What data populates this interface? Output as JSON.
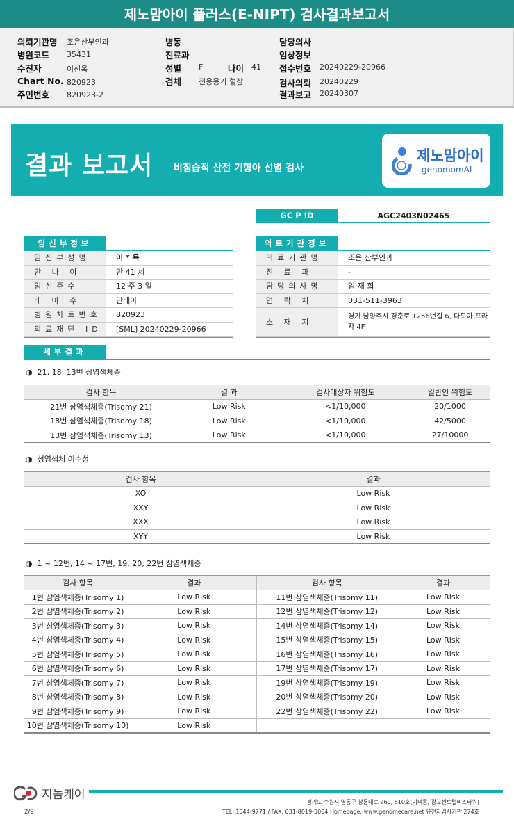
{
  "title": "제노맘아이 플러스(E-NIPT) 검사결과보고서",
  "info": {
    "req_org_label": "의뢰기관명",
    "req_org": "조은산부인과",
    "hosp_code_label": "병원코드",
    "hosp_code": "35431",
    "patient_label": "수진자",
    "patient": "이선옥",
    "chart_label": "Chart No.",
    "chart": "820923",
    "rrn_label": "주민번호",
    "rrn": "820923-2",
    "ward_label": "병동",
    "dept_label": "진료과",
    "sex_label": "성별",
    "sex": "F",
    "age_label": "나이",
    "age": "41",
    "specimen_label": "검체",
    "specimen": "전용용기 혈장",
    "doctor_label": "담당의사",
    "clinical_label": "임상정보",
    "receipt_label": "접수번호",
    "receipt": "20240229-20966",
    "request_label": "검사의뢰",
    "request": "20240229",
    "report_label": "결과보고",
    "report": "20240307"
  },
  "banner": {
    "title": "결과 보고서",
    "subtitle": "비침습적 산전 기형아 선별 검사",
    "logo_kr": "제노맘아이",
    "logo_en": "genomomAI"
  },
  "gcpid": {
    "label": "GC P ID",
    "value": "AGC2403N02465"
  },
  "mother": {
    "heading": "임신부정보",
    "rows": [
      {
        "k": "임신부성명",
        "v": "이 * 옥"
      },
      {
        "k": "만 나 이",
        "v": "만 41 세"
      },
      {
        "k": "임신주수",
        "v": "12 주 3 일"
      },
      {
        "k": "태 아 수",
        "v": "단태아"
      },
      {
        "k": "병원차트번호",
        "v": "820923"
      },
      {
        "k": "의료재단 ID",
        "v": "[SML] 20240229-20966"
      }
    ]
  },
  "clinic": {
    "heading": "의료기관정보",
    "rows": [
      {
        "k": "의료기관명",
        "v": "조은 산부인과"
      },
      {
        "k": "진 료 과",
        "v": "-"
      },
      {
        "k": "담당의사명",
        "v": "임 재 희"
      },
      {
        "k": "연 락 처",
        "v": "031-511-3963"
      },
      {
        "k": "소 재 지",
        "v": "경기 남양주시 경춘로 1256번길 6, 다모아 프라자 4F"
      }
    ]
  },
  "detail_heading": "세부결과",
  "sec1": {
    "title": "21, 18, 13번 삼염색체증",
    "headers": [
      "검사 항목",
      "결 과",
      "검사대상자 위험도",
      "일반인 위험도"
    ],
    "rows": [
      [
        "21번 삼염색체증(Trisomy 21)",
        "Low Risk",
        "<1/10,000",
        "20/1000"
      ],
      [
        "18번 삼염색체증(Trisomy 18)",
        "Low Risk",
        "<1/10,000",
        "42/5000"
      ],
      [
        "13번 삼염색체증(Trisomy 13)",
        "Low Risk",
        "<1/10,000",
        "27/10000"
      ]
    ]
  },
  "sec2": {
    "title": "성염색체 이수성",
    "headers": [
      "검사 항목",
      "결과"
    ],
    "rows": [
      [
        "XO",
        "Low Risk"
      ],
      [
        "XXY",
        "Low Risk"
      ],
      [
        "XXX",
        "Low Risk"
      ],
      [
        "XYY",
        "Low Risk"
      ]
    ]
  },
  "sec3": {
    "title": "1 ~ 12번, 14 ~ 17번, 19, 20, 22번 삼염색체증",
    "headers": [
      "검사 항목",
      "결과",
      "검사 항목",
      "결과"
    ],
    "left": [
      [
        "1번 삼염색체증(Trisomy 1)",
        "Low Risk"
      ],
      [
        "2번 삼염색체증(Trisomy 2)",
        "Low Risk"
      ],
      [
        "3번 삼염색체증(Trisomy 3)",
        "Low Risk"
      ],
      [
        "4번 삼염색체증(Trisomy 4)",
        "Low Risk"
      ],
      [
        "5번 삼염색체증(Trisomy 5)",
        "Low Risk"
      ],
      [
        "6번 삼염색체증(Trisomy 6)",
        "Low Risk"
      ],
      [
        "7번 삼염색체증(Trisomy 7)",
        "Low Risk"
      ],
      [
        "8번 삼염색체증(Trisomy 8)",
        "Low Risk"
      ],
      [
        "9번 삼염색체증(Trisomy 9)",
        "Low Risk"
      ],
      [
        "10번 삼염색체증(Trisomy 10)",
        "Low Risk"
      ]
    ],
    "right": [
      [
        "11번 삼염색체증(Trisomy 11)",
        "Low Risk"
      ],
      [
        "12번 삼염색체증(Trisomy 12)",
        "Low Risk"
      ],
      [
        "14번 삼염색체증(Trisomy 14)",
        "Low Risk"
      ],
      [
        "15번 삼염색체증(Trisomy 15)",
        "Low Risk"
      ],
      [
        "16번 삼염색체증(Trisomy 16)",
        "Low Risk"
      ],
      [
        "17번 삼염색체증(Trisomy 17)",
        "Low Risk"
      ],
      [
        "19번 삼염색체증(Trisomy 19)",
        "Low Risk"
      ],
      [
        "20번 삼염색체증(Trisomy 20)",
        "Low Risk"
      ],
      [
        "22번 삼염색체증(Trisomy 22)",
        "Low Risk"
      ]
    ]
  },
  "section_bullet": "◑",
  "footer": {
    "company": "지놈케어",
    "address": "경기도 수원시 영통구 창룡대로 260, 810호(이의동, 광교센트럴비즈타워)",
    "contact": "TEL. 1544-9771 / FAX. 031-8019-5004 Homepage. www.genomecare.net 유전자검사기관 274호",
    "page": "2/9"
  },
  "colors": {
    "teal": "#14adb0",
    "header": "#1b8c86"
  }
}
